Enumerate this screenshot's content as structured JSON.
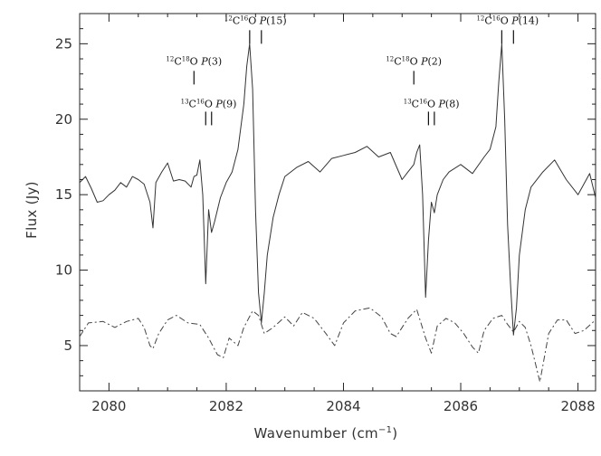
{
  "chart_data": {
    "type": "line",
    "xlabel": "Wavenumber (cm",
    "xlabel_sup": "−1",
    "xlabel_close": ")",
    "ylabel": "Flux (Jy)",
    "xlim": [
      2079.5,
      2088.3
    ],
    "ylim": [
      2,
      27
    ],
    "xticks": [
      2080,
      2082,
      2084,
      2086,
      2088
    ],
    "yticks": [
      5,
      10,
      15,
      20,
      25
    ],
    "grid": false,
    "legend": "none",
    "series": [
      {
        "style": "solid",
        "color": "#333333",
        "x": [
          2079.5,
          2079.6,
          2079.7,
          2079.8,
          2079.9,
          2080.0,
          2080.1,
          2080.2,
          2080.3,
          2080.4,
          2080.5,
          2080.6,
          2080.7,
          2080.75,
          2080.8,
          2080.9,
          2081.0,
          2081.1,
          2081.2,
          2081.3,
          2081.4,
          2081.45,
          2081.5,
          2081.55,
          2081.6,
          2081.65,
          2081.7,
          2081.75,
          2081.8,
          2081.9,
          2082.0,
          2082.1,
          2082.2,
          2082.3,
          2082.35,
          2082.4,
          2082.45,
          2082.5,
          2082.55,
          2082.6,
          2082.65,
          2082.7,
          2082.8,
          2082.9,
          2083.0,
          2083.2,
          2083.4,
          2083.6,
          2083.8,
          2084.0,
          2084.2,
          2084.4,
          2084.6,
          2084.8,
          2085.0,
          2085.1,
          2085.2,
          2085.25,
          2085.3,
          2085.35,
          2085.4,
          2085.45,
          2085.5,
          2085.55,
          2085.6,
          2085.7,
          2085.8,
          2086.0,
          2086.2,
          2086.4,
          2086.5,
          2086.6,
          2086.65,
          2086.7,
          2086.75,
          2086.8,
          2086.85,
          2086.9,
          2086.95,
          2087.0,
          2087.1,
          2087.2,
          2087.4,
          2087.6,
          2087.8,
          2088.0,
          2088.2,
          2088.3
        ],
        "y": [
          15.8,
          16.2,
          15.4,
          14.5,
          14.6,
          15.0,
          15.3,
          15.8,
          15.5,
          16.2,
          16.0,
          15.7,
          14.5,
          12.8,
          15.8,
          16.5,
          17.1,
          15.9,
          16.0,
          15.9,
          15.5,
          16.2,
          16.3,
          17.3,
          15.0,
          9.1,
          14.0,
          12.5,
          13.2,
          14.8,
          15.8,
          16.5,
          18.0,
          21.0,
          23.5,
          25.0,
          22.0,
          14.0,
          8.5,
          6.5,
          8.5,
          11.0,
          13.5,
          15.0,
          16.2,
          16.8,
          17.2,
          16.5,
          17.4,
          17.6,
          17.8,
          18.2,
          17.5,
          17.8,
          16.0,
          16.5,
          17.0,
          17.8,
          18.3,
          15.0,
          8.2,
          12.0,
          14.5,
          13.8,
          15.0,
          16.0,
          16.5,
          17.0,
          16.4,
          17.5,
          18.0,
          19.5,
          22.5,
          25.0,
          20.0,
          13.0,
          9.0,
          5.7,
          7.5,
          11.0,
          14.0,
          15.5,
          16.5,
          17.3,
          16.0,
          15.0,
          16.4,
          14.8
        ]
      },
      {
        "style": "dash-dot",
        "color": "#444444",
        "x": [
          2079.5,
          2079.65,
          2079.9,
          2080.1,
          2080.3,
          2080.5,
          2080.6,
          2080.7,
          2080.75,
          2080.85,
          2081.0,
          2081.15,
          2081.35,
          2081.55,
          2081.7,
          2081.85,
          2081.95,
          2082.05,
          2082.2,
          2082.3,
          2082.45,
          2082.55,
          2082.65,
          2082.8,
          2083.0,
          2083.15,
          2083.3,
          2083.5,
          2083.7,
          2083.85,
          2084.0,
          2084.2,
          2084.45,
          2084.65,
          2084.8,
          2084.9,
          2085.1,
          2085.25,
          2085.4,
          2085.5,
          2085.6,
          2085.75,
          2085.9,
          2086.05,
          2086.2,
          2086.3,
          2086.4,
          2086.55,
          2086.7,
          2086.8,
          2086.9,
          2087.0,
          2087.1,
          2087.2,
          2087.35,
          2087.5,
          2087.65,
          2087.8,
          2087.95,
          2088.1,
          2088.3
        ],
        "y": [
          5.6,
          6.5,
          6.6,
          6.2,
          6.6,
          6.8,
          6.2,
          5.0,
          4.8,
          5.8,
          6.7,
          7.0,
          6.5,
          6.4,
          5.5,
          4.4,
          4.2,
          5.5,
          5.0,
          6.2,
          7.3,
          7.0,
          5.8,
          6.2,
          6.9,
          6.3,
          7.2,
          6.8,
          5.8,
          5.0,
          6.5,
          7.3,
          7.5,
          6.9,
          5.8,
          5.6,
          6.8,
          7.4,
          5.5,
          4.5,
          6.3,
          6.8,
          6.5,
          5.8,
          4.9,
          4.5,
          6.0,
          6.8,
          7.0,
          6.4,
          5.9,
          6.6,
          6.2,
          5.0,
          2.6,
          5.8,
          6.7,
          6.7,
          5.8,
          6.0,
          6.7
        ]
      }
    ],
    "annotations": [
      {
        "mol_pre": "12",
        "mol_a": "C",
        "mol_mid": "18",
        "mol_b": "O",
        "branch": "P",
        "num": "(3)",
        "x": 2081.45,
        "label_y": 23.6,
        "ticks": [
          2081.45
        ],
        "tick_y": [
          22.3,
          23.2
        ]
      },
      {
        "mol_pre": "13",
        "mol_a": "C",
        "mol_mid": "16",
        "mol_b": "O",
        "branch": "P",
        "num": "(9)",
        "x": 2081.7,
        "label_y": 20.8,
        "ticks": [
          2081.65,
          2081.75
        ],
        "tick_y": [
          19.6,
          20.5
        ]
      },
      {
        "mol_pre": "12",
        "mol_a": "C",
        "mol_mid": "16",
        "mol_b": "O",
        "branch": "P",
        "num": "(15)",
        "x": 2082.5,
        "label_y": 26.3,
        "ticks": [
          2082.4,
          2082.6
        ],
        "tick_y": [
          25.0,
          25.9
        ]
      },
      {
        "mol_pre": "12",
        "mol_a": "C",
        "mol_mid": "18",
        "mol_b": "O",
        "branch": "P",
        "num": "(2)",
        "x": 2085.2,
        "label_y": 23.6,
        "ticks": [
          2085.2
        ],
        "tick_y": [
          22.3,
          23.2
        ]
      },
      {
        "mol_pre": "13",
        "mol_a": "C",
        "mol_mid": "16",
        "mol_b": "O",
        "branch": "P",
        "num": "(8)",
        "x": 2085.5,
        "label_y": 20.8,
        "ticks": [
          2085.45,
          2085.55
        ],
        "tick_y": [
          19.6,
          20.5
        ]
      },
      {
        "mol_pre": "12",
        "mol_a": "C",
        "mol_mid": "16",
        "mol_b": "O",
        "branch": "P",
        "num": "(14)",
        "x": 2086.8,
        "label_y": 26.3,
        "ticks": [
          2086.7,
          2086.9
        ],
        "tick_y": [
          25.0,
          25.9
        ]
      }
    ]
  }
}
